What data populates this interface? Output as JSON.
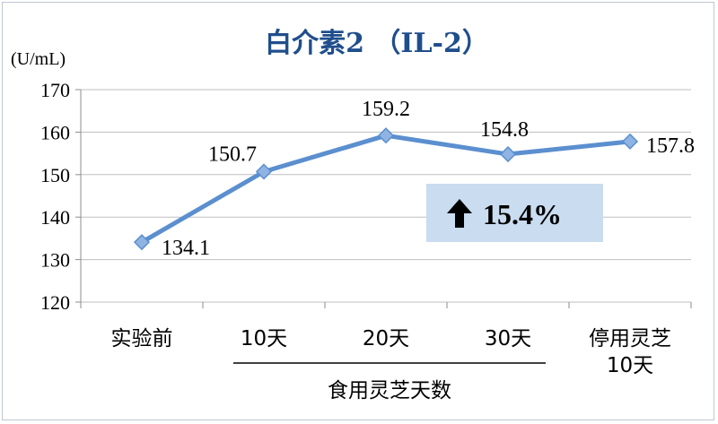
{
  "chart_data": {
    "type": "line",
    "title": "白介素2 （IL-2）",
    "ylabel": "(U/mL)",
    "xlabel": "",
    "categories": [
      [
        "实验前"
      ],
      [
        "10天"
      ],
      [
        "20天"
      ],
      [
        "30天"
      ],
      [
        "停用灵芝",
        "10天"
      ]
    ],
    "values": [
      134.1,
      150.7,
      159.2,
      154.8,
      157.8
    ],
    "data_labels": [
      "134.1",
      "150.7",
      "159.2",
      "154.8",
      "157.8"
    ],
    "ylim": [
      120,
      170
    ],
    "yticks": [
      120,
      130,
      140,
      150,
      160,
      170
    ],
    "grid": true,
    "group_label": "食用灵芝天数",
    "callout": {
      "arrow": "up-arrow-icon",
      "text": "15.4%"
    },
    "colors": {
      "line": "#5b8fcf",
      "marker": "#8fb4e3",
      "title": "#1f4e8c",
      "callout_bg": "#c9dcf0",
      "grid": "#bfbfbf"
    }
  }
}
